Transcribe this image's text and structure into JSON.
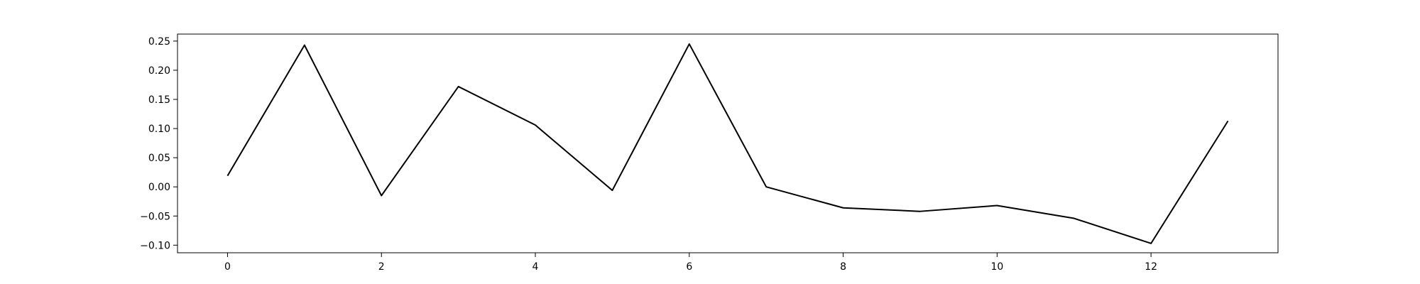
{
  "chart_data": {
    "type": "line",
    "title": "",
    "xlabel": "",
    "ylabel": "",
    "xlim": [
      -0.65,
      13.65
    ],
    "ylim": [
      -0.113,
      0.262
    ],
    "x_ticks": [
      0,
      2,
      4,
      6,
      8,
      10,
      12
    ],
    "y_ticks": [
      -0.1,
      -0.05,
      0.0,
      0.05,
      0.1,
      0.15,
      0.2,
      0.25
    ],
    "x_tick_labels": [
      "0",
      "2",
      "4",
      "6",
      "8",
      "10",
      "12"
    ],
    "y_tick_labels": [
      "−0.10",
      "−0.05",
      "0.00",
      "0.05",
      "0.10",
      "0.15",
      "0.20",
      "0.25"
    ],
    "grid": false,
    "legend": "none",
    "series": [
      {
        "color": "#000000",
        "x": [
          0,
          1,
          2,
          3,
          4,
          5,
          6,
          7,
          8,
          9,
          10,
          11,
          12,
          13
        ],
        "values": [
          0.019,
          0.243,
          -0.015,
          0.172,
          0.106,
          -0.006,
          0.245,
          0.0,
          -0.036,
          -0.042,
          -0.032,
          -0.054,
          -0.097,
          0.113
        ]
      }
    ]
  }
}
